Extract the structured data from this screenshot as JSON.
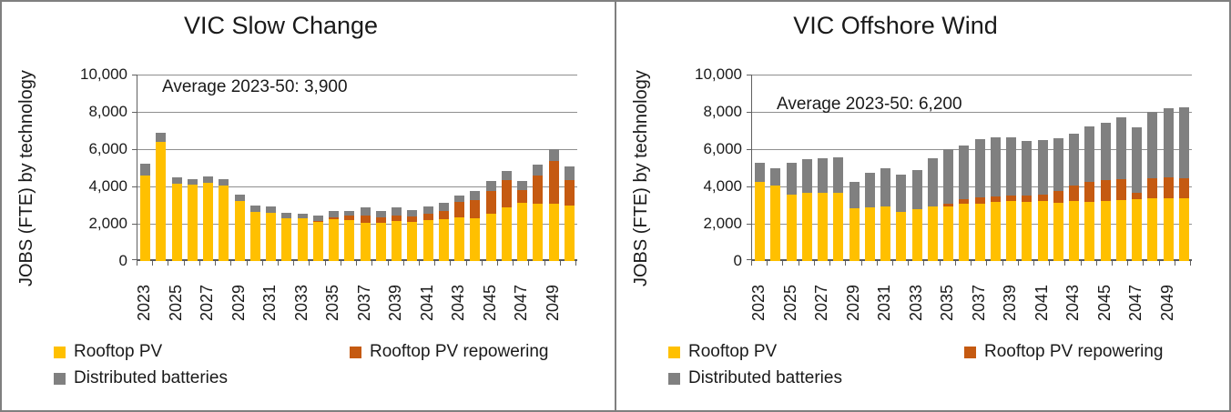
{
  "chart_data": [
    {
      "type": "bar",
      "stacked": true,
      "title": "VIC Slow Change",
      "annotation": "Average 2023-50: 3,900",
      "ylabel": "JOBS (FTE) by technology",
      "ylim": [
        0,
        10000
      ],
      "yticks": [
        0,
        2000,
        4000,
        6000,
        8000,
        10000
      ],
      "ytick_labels": [
        "0",
        "2,000",
        "4,000",
        "6,000",
        "8,000",
        "10,000"
      ],
      "grid": true,
      "legend_position": "bottom",
      "categories": [
        "2023",
        "2024",
        "2025",
        "2026",
        "2027",
        "2028",
        "2029",
        "2030",
        "2031",
        "2032",
        "2033",
        "2034",
        "2035",
        "2036",
        "2037",
        "2038",
        "2039",
        "2040",
        "2041",
        "2042",
        "2043",
        "2044",
        "2045",
        "2046",
        "2047",
        "2048",
        "2049",
        "2050"
      ],
      "xtick_labels_shown": [
        "2023",
        "2025",
        "2027",
        "2029",
        "2031",
        "2033",
        "2035",
        "2037",
        "2039",
        "2041",
        "2043",
        "2045",
        "2047",
        "2049"
      ],
      "series": [
        {
          "name": "Rooftop PV",
          "color": "#FFC000",
          "values": [
            4600,
            6400,
            4150,
            4100,
            4200,
            4050,
            3200,
            2650,
            2600,
            2300,
            2300,
            2100,
            2250,
            2200,
            2050,
            2050,
            2150,
            2100,
            2200,
            2250,
            2350,
            2300,
            2550,
            2900,
            3100,
            3050,
            3050,
            3000
          ]
        },
        {
          "name": "Rooftop PV repowering",
          "color": "#C55A11",
          "values": [
            0,
            0,
            0,
            0,
            0,
            0,
            0,
            0,
            0,
            0,
            0,
            50,
            100,
            250,
            400,
            300,
            300,
            300,
            350,
            450,
            800,
            950,
            1200,
            1450,
            700,
            1550,
            2300,
            1350
          ]
        },
        {
          "name": "Distributed batteries",
          "color": "#808080",
          "values": [
            600,
            500,
            350,
            300,
            350,
            350,
            350,
            350,
            350,
            300,
            250,
            300,
            350,
            250,
            450,
            350,
            450,
            350,
            400,
            400,
            350,
            500,
            550,
            500,
            500,
            550,
            650,
            700
          ]
        }
      ]
    },
    {
      "type": "bar",
      "stacked": true,
      "title": "VIC Offshore Wind",
      "annotation": "Average 2023-50: 6,200",
      "ylabel": "JOBS (FTE) by technology",
      "ylim": [
        0,
        10000
      ],
      "yticks": [
        0,
        2000,
        4000,
        6000,
        8000,
        10000
      ],
      "ytick_labels": [
        "0",
        "2,000",
        "4,000",
        "6,000",
        "8,000",
        "10,000"
      ],
      "grid": true,
      "legend_position": "bottom",
      "categories": [
        "2023",
        "2024",
        "2025",
        "2026",
        "2027",
        "2028",
        "2029",
        "2030",
        "2031",
        "2032",
        "2033",
        "2034",
        "2035",
        "2036",
        "2037",
        "2038",
        "2039",
        "2040",
        "2041",
        "2042",
        "2043",
        "2044",
        "2045",
        "2046",
        "2047",
        "2048",
        "2049",
        "2050"
      ],
      "xtick_labels_shown": [
        "2023",
        "2025",
        "2027",
        "2029",
        "2031",
        "2033",
        "2035",
        "2037",
        "2039",
        "2041",
        "2043",
        "2045",
        "2047",
        "2049"
      ],
      "series": [
        {
          "name": "Rooftop PV",
          "color": "#FFC000",
          "values": [
            4250,
            4050,
            3550,
            3650,
            3650,
            3650,
            2850,
            2900,
            2950,
            2650,
            2800,
            2950,
            2950,
            3050,
            3050,
            3150,
            3200,
            3150,
            3200,
            3100,
            3200,
            3150,
            3200,
            3250,
            3300,
            3350,
            3350,
            3350
          ]
        },
        {
          "name": "Rooftop PV repowering",
          "color": "#C55A11",
          "values": [
            0,
            0,
            0,
            0,
            0,
            0,
            0,
            0,
            0,
            0,
            0,
            0,
            100,
            250,
            350,
            300,
            300,
            350,
            350,
            650,
            850,
            1100,
            1150,
            1150,
            350,
            1100,
            1150,
            1100
          ]
        },
        {
          "name": "Distributed batteries",
          "color": "#808080",
          "values": [
            1000,
            950,
            1700,
            1800,
            1850,
            1900,
            1400,
            1850,
            2050,
            2000,
            2100,
            2550,
            2950,
            2900,
            3150,
            3200,
            3150,
            2950,
            2950,
            2850,
            2800,
            2950,
            3050,
            3300,
            3500,
            3550,
            3700,
            3800
          ]
        }
      ]
    }
  ]
}
